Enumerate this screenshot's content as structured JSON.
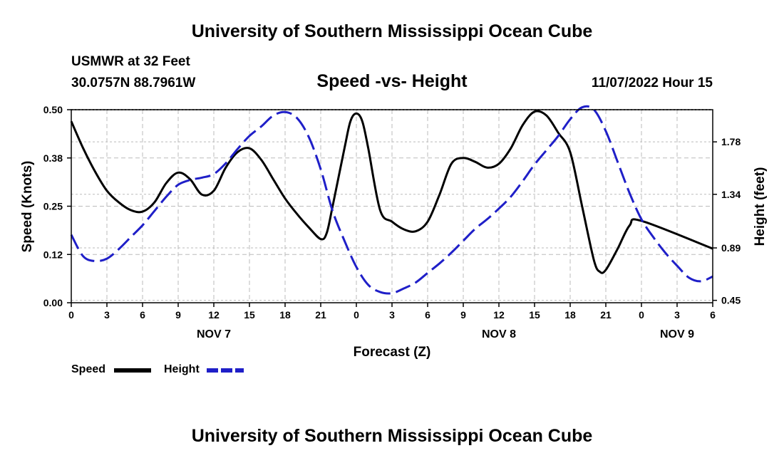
{
  "title": "University of Southern Mississippi Ocean Cube",
  "station": "USMWR at 32 Feet",
  "coords": "30.0757N  88.7961W",
  "subtitle": "Speed -vs- Height",
  "datetime": "11/07/2022 Hour 15",
  "footer_title": "University of Southern Mississippi Ocean Cube",
  "legend": {
    "speed": "Speed",
    "height": "Height"
  },
  "colors": {
    "speed": "#000000",
    "height": "#1f1fc8",
    "grid": "#bbbbbb"
  },
  "chart_data": {
    "type": "line",
    "xlabel": "Forecast (Z)",
    "ylabel": "Speed (Knots)",
    "y2label": "Height (feet)",
    "x_range_hours": [
      0,
      54
    ],
    "x_ticks": [
      {
        "h": 0,
        "label": "0"
      },
      {
        "h": 3,
        "label": "3"
      },
      {
        "h": 6,
        "label": "6"
      },
      {
        "h": 9,
        "label": "9"
      },
      {
        "h": 12,
        "label": "12"
      },
      {
        "h": 15,
        "label": "15"
      },
      {
        "h": 18,
        "label": "18"
      },
      {
        "h": 21,
        "label": "21"
      },
      {
        "h": 24,
        "label": "0"
      },
      {
        "h": 27,
        "label": "3"
      },
      {
        "h": 30,
        "label": "6"
      },
      {
        "h": 33,
        "label": "9"
      },
      {
        "h": 36,
        "label": "12"
      },
      {
        "h": 39,
        "label": "15"
      },
      {
        "h": 42,
        "label": "18"
      },
      {
        "h": 45,
        "label": "21"
      },
      {
        "h": 48,
        "label": "0"
      },
      {
        "h": 51,
        "label": "3"
      },
      {
        "h": 54,
        "label": "6"
      }
    ],
    "day_labels": [
      {
        "h": 12,
        "label": "NOV 7"
      },
      {
        "h": 36,
        "label": "NOV 8"
      },
      {
        "h": 51,
        "label": "NOV 9"
      }
    ],
    "ylim": [
      0,
      0.5
    ],
    "y_ticks": [
      "0.00",
      "0.12",
      "0.25",
      "0.38",
      "0.50"
    ],
    "y_tick_values": [
      0,
      0.125,
      0.25,
      0.375,
      0.5
    ],
    "y2lim": [
      0.43,
      2.05
    ],
    "y2_ticks": [
      "0.45",
      "0.89",
      "1.34",
      "1.78"
    ],
    "y2_tick_values": [
      0.45,
      0.89,
      1.34,
      1.78
    ],
    "series": [
      {
        "name": "Speed",
        "axis": "left",
        "x": [
          0,
          1,
          2,
          3,
          4,
          5,
          6,
          7,
          8,
          9,
          10,
          11,
          12,
          13,
          14,
          15,
          16,
          17,
          18,
          19,
          20,
          21,
          21.5,
          22,
          23,
          23.5,
          24,
          24.5,
          25,
          26,
          27,
          28,
          29,
          30,
          31,
          32,
          33,
          34,
          35,
          36,
          37,
          38,
          39,
          40,
          41,
          42,
          43,
          44,
          44.5,
          45,
          46,
          47,
          48,
          54
        ],
        "values": [
          0.47,
          0.4,
          0.34,
          0.29,
          0.26,
          0.24,
          0.236,
          0.26,
          0.31,
          0.337,
          0.32,
          0.28,
          0.29,
          0.35,
          0.39,
          0.4,
          0.37,
          0.32,
          0.27,
          0.23,
          0.195,
          0.165,
          0.18,
          0.25,
          0.4,
          0.47,
          0.49,
          0.47,
          0.4,
          0.24,
          0.21,
          0.19,
          0.185,
          0.21,
          0.28,
          0.36,
          0.375,
          0.365,
          0.35,
          0.36,
          0.4,
          0.46,
          0.495,
          0.485,
          0.44,
          0.39,
          0.25,
          0.11,
          0.08,
          0.085,
          0.14,
          0.2,
          0.212,
          0.14
        ]
      },
      {
        "name": "Height",
        "axis": "right",
        "x": [
          0,
          1,
          2,
          3,
          4,
          5,
          6,
          7,
          8,
          9,
          10,
          11,
          12,
          13,
          14,
          15,
          16,
          17,
          18,
          19,
          20,
          21,
          22,
          23,
          24,
          25,
          26,
          27,
          28,
          29,
          30,
          31,
          32,
          33,
          34,
          35,
          36,
          37,
          38,
          39,
          40,
          41,
          42,
          43,
          44,
          45,
          46,
          47,
          48,
          49,
          50,
          51,
          52,
          53,
          54
        ],
        "values": [
          1.0,
          0.82,
          0.78,
          0.8,
          0.88,
          0.98,
          1.08,
          1.2,
          1.32,
          1.42,
          1.46,
          1.48,
          1.51,
          1.6,
          1.72,
          1.83,
          1.91,
          2.0,
          2.03,
          1.98,
          1.82,
          1.55,
          1.2,
          0.95,
          0.73,
          0.58,
          0.52,
          0.51,
          0.55,
          0.6,
          0.68,
          0.76,
          0.85,
          0.95,
          1.05,
          1.13,
          1.22,
          1.32,
          1.45,
          1.59,
          1.71,
          1.83,
          1.97,
          2.07,
          2.05,
          1.87,
          1.61,
          1.35,
          1.13,
          0.98,
          0.85,
          0.74,
          0.64,
          0.61,
          0.65
        ]
      }
    ]
  }
}
